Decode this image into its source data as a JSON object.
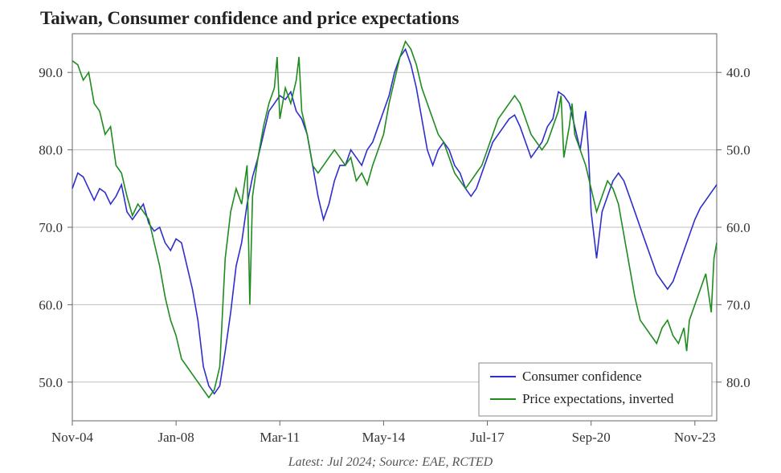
{
  "chart": {
    "type": "line",
    "title": "Taiwan, Consumer confidence and price expectations",
    "title_fontsize": 23,
    "caption": "Latest: Jul 2024; Source: EAE, RCTED",
    "caption_fontsize": 16,
    "background_color": "#ffffff",
    "grid_color": "#bfbfbf",
    "border_color": "#666666",
    "axis_font_size": 17,
    "x": {
      "min": 0,
      "max": 236,
      "ticks": [
        0,
        38,
        76,
        114,
        152,
        190,
        228
      ],
      "tick_labels": [
        "Nov-04",
        "Jan-08",
        "Mar-11",
        "May-14",
        "Jul-17",
        "Sep-20",
        "Nov-23"
      ]
    },
    "y_left": {
      "label": "",
      "min": 45,
      "max": 95,
      "ticks": [
        50,
        60,
        70,
        80,
        90
      ],
      "tick_labels": [
        "50.0",
        "60.0",
        "70.0",
        "80.0",
        "90.0"
      ]
    },
    "y_right": {
      "label": "",
      "min": 85,
      "max": 35,
      "ticks": [
        40,
        50,
        60,
        70,
        80
      ],
      "tick_labels": [
        "40.0",
        "50.0",
        "60.0",
        "70.0",
        "80.0"
      ],
      "inverted": true
    },
    "legend": {
      "position": "bottom-right",
      "items": [
        {
          "label": "Consumer confidence",
          "color": "#2e2ecb"
        },
        {
          "label": "Price expectations, inverted",
          "color": "#1f8c1f"
        }
      ]
    },
    "series": [
      {
        "name": "Consumer confidence",
        "axis": "left",
        "color": "#2e2ecb",
        "line_width": 1.6,
        "data": [
          [
            0,
            75
          ],
          [
            2,
            77
          ],
          [
            4,
            76.5
          ],
          [
            6,
            75
          ],
          [
            8,
            73.5
          ],
          [
            10,
            75
          ],
          [
            12,
            74.5
          ],
          [
            14,
            73
          ],
          [
            16,
            74
          ],
          [
            18,
            75.5
          ],
          [
            20,
            72
          ],
          [
            22,
            71
          ],
          [
            24,
            72
          ],
          [
            26,
            73
          ],
          [
            28,
            70.5
          ],
          [
            30,
            69.5
          ],
          [
            32,
            70
          ],
          [
            34,
            68
          ],
          [
            36,
            67
          ],
          [
            38,
            68.5
          ],
          [
            40,
            68
          ],
          [
            42,
            65
          ],
          [
            44,
            62
          ],
          [
            46,
            58
          ],
          [
            48,
            52
          ],
          [
            50,
            49.5
          ],
          [
            52,
            48.5
          ],
          [
            54,
            49.5
          ],
          [
            56,
            54
          ],
          [
            58,
            59
          ],
          [
            60,
            65
          ],
          [
            62,
            68
          ],
          [
            64,
            73
          ],
          [
            66,
            76.5
          ],
          [
            68,
            79
          ],
          [
            70,
            82
          ],
          [
            72,
            85
          ],
          [
            74,
            86
          ],
          [
            76,
            87
          ],
          [
            78,
            86.5
          ],
          [
            80,
            87.5
          ],
          [
            82,
            85
          ],
          [
            84,
            84
          ],
          [
            86,
            82
          ],
          [
            88,
            78
          ],
          [
            90,
            74
          ],
          [
            92,
            71
          ],
          [
            94,
            73
          ],
          [
            96,
            76
          ],
          [
            98,
            78
          ],
          [
            100,
            78
          ],
          [
            102,
            80
          ],
          [
            104,
            79
          ],
          [
            106,
            78
          ],
          [
            108,
            80
          ],
          [
            110,
            81
          ],
          [
            112,
            83
          ],
          [
            114,
            85
          ],
          [
            116,
            87
          ],
          [
            118,
            90
          ],
          [
            120,
            92
          ],
          [
            122,
            93
          ],
          [
            124,
            91
          ],
          [
            126,
            88
          ],
          [
            128,
            84
          ],
          [
            130,
            80
          ],
          [
            132,
            78
          ],
          [
            134,
            80
          ],
          [
            136,
            81
          ],
          [
            138,
            80
          ],
          [
            140,
            78
          ],
          [
            142,
            77
          ],
          [
            144,
            75
          ],
          [
            146,
            74
          ],
          [
            148,
            75
          ],
          [
            150,
            77
          ],
          [
            152,
            79
          ],
          [
            154,
            81
          ],
          [
            156,
            82
          ],
          [
            158,
            83
          ],
          [
            160,
            84
          ],
          [
            162,
            84.5
          ],
          [
            164,
            83
          ],
          [
            166,
            81
          ],
          [
            168,
            79
          ],
          [
            170,
            80
          ],
          [
            172,
            81
          ],
          [
            174,
            83
          ],
          [
            176,
            84
          ],
          [
            178,
            87.5
          ],
          [
            180,
            87
          ],
          [
            182,
            86
          ],
          [
            184,
            83
          ],
          [
            186,
            80
          ],
          [
            188,
            85
          ],
          [
            189,
            80
          ],
          [
            190,
            72
          ],
          [
            192,
            66
          ],
          [
            194,
            72
          ],
          [
            196,
            74
          ],
          [
            198,
            76
          ],
          [
            200,
            77
          ],
          [
            202,
            76
          ],
          [
            204,
            74
          ],
          [
            206,
            72
          ],
          [
            208,
            70
          ],
          [
            210,
            68
          ],
          [
            212,
            66
          ],
          [
            214,
            64
          ],
          [
            216,
            63
          ],
          [
            218,
            62
          ],
          [
            220,
            63
          ],
          [
            222,
            65
          ],
          [
            224,
            67
          ],
          [
            226,
            69
          ],
          [
            228,
            71
          ],
          [
            230,
            72.5
          ],
          [
            232,
            73.5
          ],
          [
            234,
            74.5
          ],
          [
            236,
            75.5
          ]
        ]
      },
      {
        "name": "Price expectations, inverted",
        "axis": "right",
        "color": "#1f8c1f",
        "line_width": 1.6,
        "data": [
          [
            0,
            38.5
          ],
          [
            2,
            39
          ],
          [
            4,
            41
          ],
          [
            6,
            40
          ],
          [
            8,
            44
          ],
          [
            10,
            45
          ],
          [
            12,
            48
          ],
          [
            14,
            47
          ],
          [
            16,
            52
          ],
          [
            18,
            53
          ],
          [
            20,
            56
          ],
          [
            22,
            58.5
          ],
          [
            24,
            57
          ],
          [
            26,
            58
          ],
          [
            28,
            59
          ],
          [
            30,
            62
          ],
          [
            32,
            65
          ],
          [
            34,
            69
          ],
          [
            36,
            72
          ],
          [
            38,
            74
          ],
          [
            40,
            77
          ],
          [
            42,
            78
          ],
          [
            44,
            79
          ],
          [
            46,
            80
          ],
          [
            48,
            81
          ],
          [
            50,
            82
          ],
          [
            52,
            81
          ],
          [
            54,
            78
          ],
          [
            56,
            64
          ],
          [
            58,
            58
          ],
          [
            60,
            55
          ],
          [
            62,
            57
          ],
          [
            64,
            52
          ],
          [
            65,
            70
          ],
          [
            66,
            56
          ],
          [
            68,
            51
          ],
          [
            70,
            47
          ],
          [
            72,
            44
          ],
          [
            74,
            42
          ],
          [
            75,
            38
          ],
          [
            76,
            46
          ],
          [
            78,
            42
          ],
          [
            80,
            44
          ],
          [
            82,
            41
          ],
          [
            83,
            38
          ],
          [
            84,
            45
          ],
          [
            86,
            48
          ],
          [
            88,
            52
          ],
          [
            90,
            53
          ],
          [
            92,
            52
          ],
          [
            94,
            51
          ],
          [
            96,
            50
          ],
          [
            98,
            51
          ],
          [
            100,
            52
          ],
          [
            102,
            51
          ],
          [
            104,
            54
          ],
          [
            106,
            53
          ],
          [
            108,
            54.5
          ],
          [
            110,
            52
          ],
          [
            112,
            50
          ],
          [
            114,
            48
          ],
          [
            116,
            44
          ],
          [
            118,
            41
          ],
          [
            120,
            38
          ],
          [
            122,
            36
          ],
          [
            124,
            37
          ],
          [
            126,
            39
          ],
          [
            128,
            42
          ],
          [
            130,
            44
          ],
          [
            132,
            46
          ],
          [
            134,
            48
          ],
          [
            136,
            49
          ],
          [
            138,
            51
          ],
          [
            140,
            53
          ],
          [
            142,
            54
          ],
          [
            144,
            55
          ],
          [
            146,
            54
          ],
          [
            148,
            53
          ],
          [
            150,
            52
          ],
          [
            152,
            50
          ],
          [
            154,
            48
          ],
          [
            156,
            46
          ],
          [
            158,
            45
          ],
          [
            160,
            44
          ],
          [
            162,
            43
          ],
          [
            164,
            44
          ],
          [
            166,
            46
          ],
          [
            168,
            48
          ],
          [
            170,
            49
          ],
          [
            172,
            50
          ],
          [
            174,
            49
          ],
          [
            176,
            47
          ],
          [
            178,
            45
          ],
          [
            179,
            43
          ],
          [
            180,
            51
          ],
          [
            182,
            47
          ],
          [
            183,
            44
          ],
          [
            184,
            48
          ],
          [
            186,
            50
          ],
          [
            188,
            52
          ],
          [
            190,
            55
          ],
          [
            192,
            58
          ],
          [
            194,
            56
          ],
          [
            196,
            54
          ],
          [
            198,
            55
          ],
          [
            200,
            57
          ],
          [
            202,
            61
          ],
          [
            204,
            65
          ],
          [
            206,
            69
          ],
          [
            208,
            72
          ],
          [
            210,
            73
          ],
          [
            212,
            74
          ],
          [
            214,
            75
          ],
          [
            216,
            73
          ],
          [
            218,
            72
          ],
          [
            220,
            74
          ],
          [
            222,
            75
          ],
          [
            224,
            73
          ],
          [
            225,
            76
          ],
          [
            226,
            72
          ],
          [
            228,
            70
          ],
          [
            230,
            68
          ],
          [
            232,
            66
          ],
          [
            234,
            71
          ],
          [
            235,
            64
          ],
          [
            236,
            62
          ]
        ]
      }
    ]
  }
}
